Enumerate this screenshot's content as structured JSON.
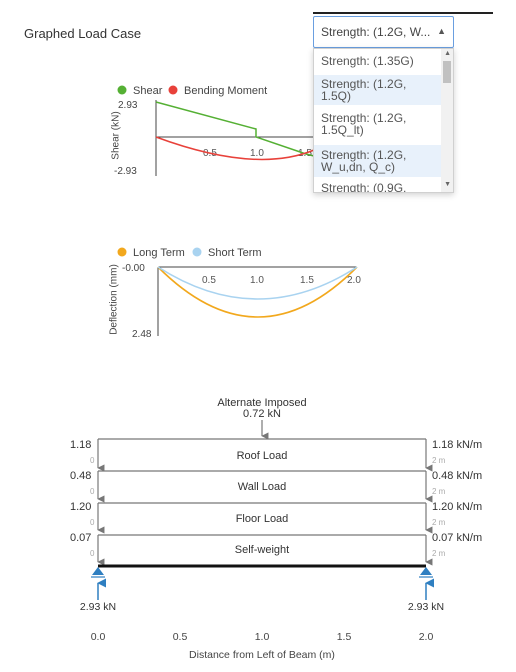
{
  "header": {
    "graphed_load_case_label": "Graphed Load Case"
  },
  "load_case_select": {
    "selected": "Strength: (1.2G, W...",
    "options": [
      {
        "line1": "Strength: (1.35G)",
        "line2": ""
      },
      {
        "line1": "Strength: (1.2G,",
        "line2": "1.5Q)"
      },
      {
        "line1": "Strength: (1.2G,",
        "line2": "1.5Q_lt)"
      },
      {
        "line1": "Strength: (1.2G,",
        "line2": "W_u,dn, Q_c)"
      },
      {
        "line1": "Strength: (0.9G,",
        "line2": ""
      }
    ]
  },
  "shear_chart": {
    "legend": {
      "shear": "Shear",
      "moment": "Bending Moment"
    },
    "ylabel": "Shear (kN)",
    "ytick_top": "2.93",
    "ytick_bottom": "-2.93",
    "xticks": [
      "0.5",
      "1.0",
      "1.5"
    ],
    "colors": {
      "shear": "#55b034",
      "moment": "#e8413a"
    }
  },
  "deflection_chart": {
    "legend": {
      "long": "Long Term",
      "short": "Short Term"
    },
    "ylabel": "Deflection (mm)",
    "ytick_top": "-0.00",
    "ytick_bottom": "2.48",
    "xticks": [
      "0.5",
      "1.0",
      "1.5",
      "2.0"
    ],
    "colors": {
      "long": "#f2a81d",
      "short": "#a9d3f0"
    }
  },
  "loads": {
    "point_load": {
      "name": "Alternate Imposed",
      "value": "0.72 kN"
    },
    "udl": [
      {
        "name": "Roof Load",
        "left": "1.18",
        "left_small": "0",
        "right": "1.18 kN/m",
        "right_small": "2 m"
      },
      {
        "name": "Wall Load",
        "left": "0.48",
        "left_small": "0",
        "right": "0.48 kN/m",
        "right_small": "2 m"
      },
      {
        "name": "Floor Load",
        "left": "1.20",
        "left_small": "0",
        "right": "1.20 kN/m",
        "right_small": "2 m"
      },
      {
        "name": "Self-weight",
        "left": "0.07",
        "left_small": "0",
        "right": "0.07 kN/m",
        "right_small": "2 m"
      }
    ],
    "reaction_left": "2.93 kN",
    "reaction_right": "2.93 kN"
  },
  "beam_axis": {
    "xticks": [
      "0.0",
      "0.5",
      "1.0",
      "1.5",
      "2.0"
    ],
    "xlabel": "Distance from Left of Beam (m)"
  }
}
